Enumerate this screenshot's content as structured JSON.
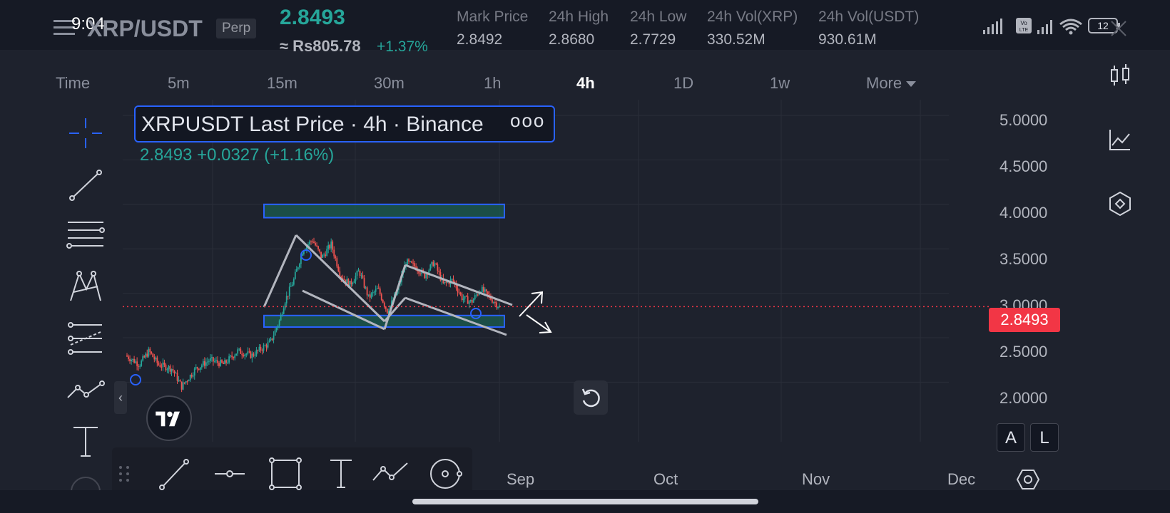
{
  "status_bar": {
    "time": "9:04",
    "battery": "12",
    "volte": "Vo LTE"
  },
  "header": {
    "pair": "XRP/USDT",
    "contract_type": "Perp",
    "last_price": "2.8493",
    "inr_price": "≈ Rs805.78",
    "change_pct": "+1.37%",
    "stats": [
      {
        "label": "Mark Price",
        "value": "2.8492"
      },
      {
        "label": "24h High",
        "value": "2.8680"
      },
      {
        "label": "24h Low",
        "value": "2.7729"
      },
      {
        "label": "24h Vol(XRP)",
        "value": "330.52M"
      },
      {
        "label": "24h Vol(USDT)",
        "value": "930.61M"
      }
    ]
  },
  "timeframes": {
    "items": [
      "Time",
      "5m",
      "15m",
      "30m",
      "1h",
      "4h",
      "1D",
      "1w",
      "More"
    ],
    "active": "4h"
  },
  "legend": {
    "title": "XRPUSDT Last Price · 4h · Binance",
    "more": "ooo",
    "values": "2.8493  +0.0327 (+1.16%)"
  },
  "price_axis": {
    "labels": [
      "5.0000",
      "4.5000",
      "4.0000",
      "3.5000",
      "3.0000",
      "2.5000",
      "2.0000"
    ],
    "current_price": "2.8493"
  },
  "date_axis": {
    "labels": [
      "Sep",
      "Oct",
      "Nov",
      "Dec"
    ]
  },
  "scale_buttons": {
    "auto": "A",
    "log": "L"
  },
  "chart_data": {
    "type": "candlestick",
    "symbol": "XRPUSDT",
    "interval": "4h",
    "exchange": "Binance",
    "ylim": [
      1.8,
      5.2
    ],
    "yticks": [
      2.0,
      2.5,
      3.0,
      3.5,
      4.0,
      4.5,
      5.0
    ],
    "xticks": [
      "Sep",
      "Oct",
      "Nov",
      "Dec"
    ],
    "current_price": 2.8493,
    "price_path": [
      [
        0,
        2.3
      ],
      [
        3,
        2.2
      ],
      [
        5,
        2.35
      ],
      [
        7,
        2.2
      ],
      [
        10,
        2.15
      ],
      [
        12,
        1.95
      ],
      [
        15,
        2.15
      ],
      [
        18,
        2.25
      ],
      [
        21,
        2.2
      ],
      [
        24,
        2.35
      ],
      [
        27,
        2.3
      ],
      [
        31,
        2.45
      ],
      [
        33,
        2.7
      ],
      [
        34,
        2.9
      ],
      [
        36,
        3.15
      ],
      [
        38,
        3.5
      ],
      [
        40,
        3.6
      ],
      [
        42,
        3.4
      ],
      [
        44,
        3.55
      ],
      [
        46,
        3.2
      ],
      [
        48,
        3.1
      ],
      [
        50,
        3.25
      ],
      [
        52,
        2.95
      ],
      [
        54,
        3.05
      ],
      [
        56,
        2.8
      ],
      [
        58,
        3.0
      ],
      [
        60,
        3.35
      ],
      [
        62,
        3.3
      ],
      [
        64,
        3.2
      ],
      [
        66,
        3.35
      ],
      [
        68,
        3.1
      ],
      [
        70,
        3.15
      ],
      [
        72,
        2.95
      ],
      [
        74,
        2.9
      ],
      [
        76,
        3.05
      ],
      [
        78,
        2.95
      ],
      [
        80,
        2.85
      ]
    ],
    "drawings": {
      "resistance_zone": [
        3.85,
        4.0
      ],
      "support_zone": [
        2.62,
        2.75
      ],
      "pattern": "falling wedge / bull flag",
      "projection_arrows": [
        "up",
        "down"
      ]
    },
    "grid": true
  }
}
